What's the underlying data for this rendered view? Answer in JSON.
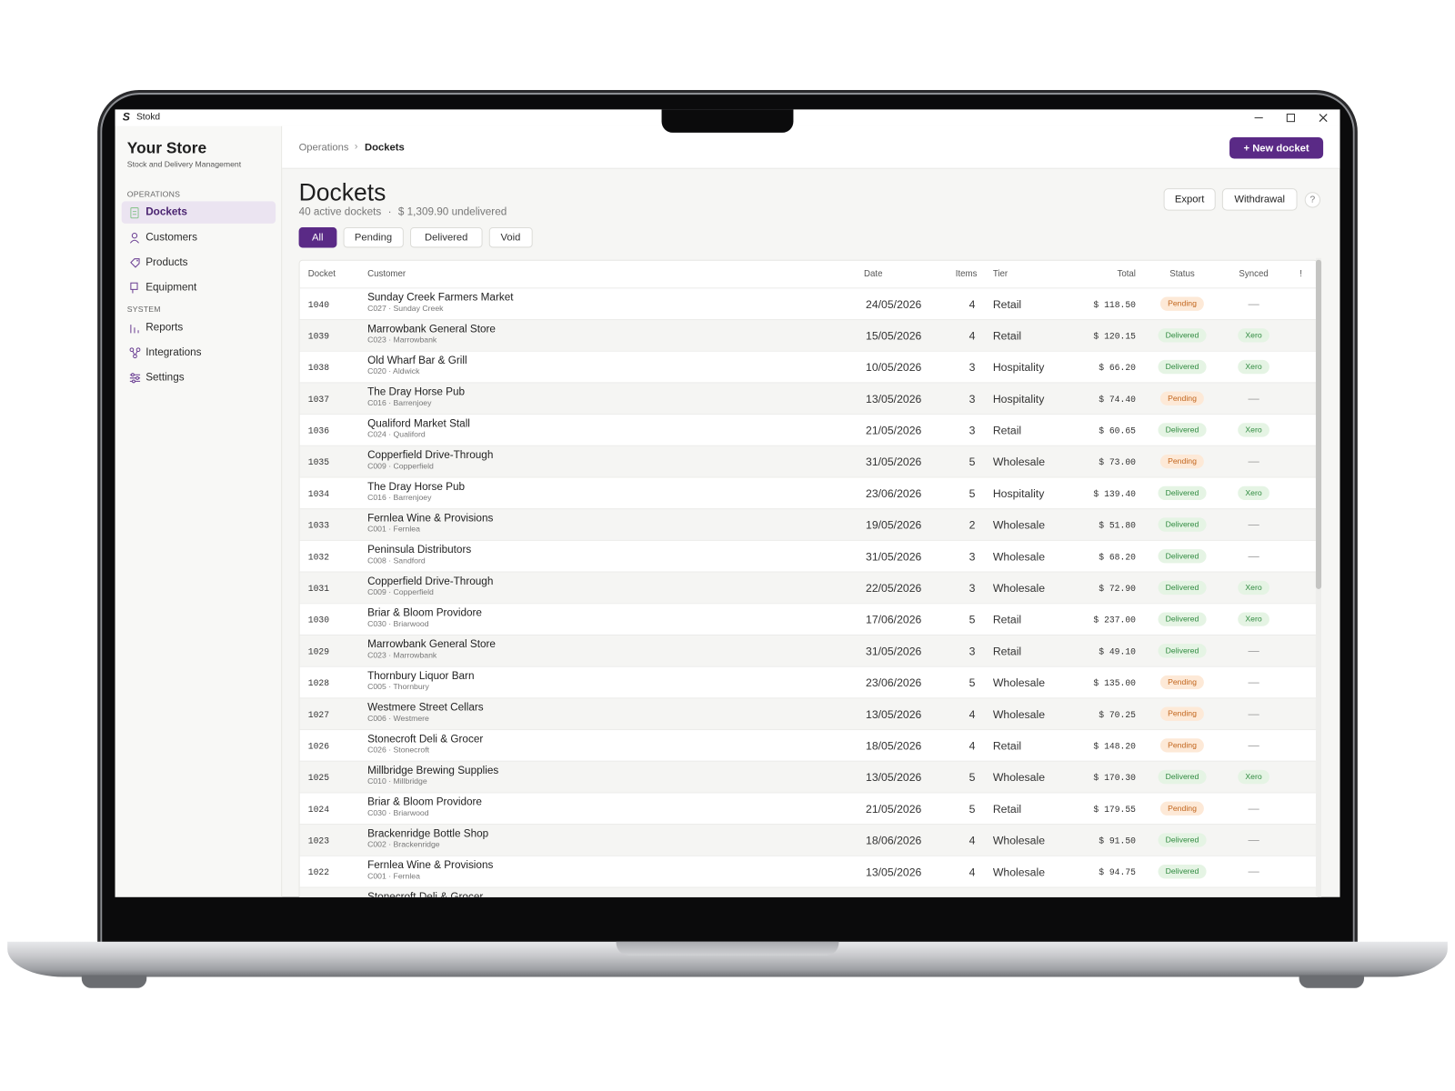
{
  "window": {
    "title": "Stokd"
  },
  "sidebar": {
    "brand": "Your Store",
    "tagline": "Stock and Delivery Management",
    "sections": [
      {
        "heading": "OPERATIONS",
        "items": [
          "Dockets",
          "Customers",
          "Products",
          "Equipment"
        ],
        "active": 0
      },
      {
        "heading": "SYSTEM",
        "items": [
          "Reports",
          "Integrations",
          "Settings"
        ]
      }
    ]
  },
  "breadcrumb": [
    "Operations",
    "Dockets"
  ],
  "primary_action": "+ New docket",
  "page": {
    "title": "Dockets",
    "summary": "40 active dockets",
    "separator": "·",
    "undelivered": "$ 1,309.90 undelivered",
    "actions": [
      "Export",
      "Withdrawal",
      "?"
    ]
  },
  "filters": {
    "items": [
      "All",
      "Pending",
      "Delivered",
      "Void"
    ],
    "active": 0
  },
  "badge_styles": [
    {
      "label": "Pending",
      "color": "#c2651c",
      "background": "#fde9d7"
    },
    {
      "label": "Delivered",
      "color": "#2f8a3f",
      "background": "#e5f4e4"
    },
    {
      "label": "Xero",
      "color": "#2f8a3f",
      "background": "#e5f4e4"
    }
  ],
  "table": {
    "columns": [
      "Docket",
      "Customer",
      "Date",
      "Items",
      "Tier",
      "Total",
      "Status",
      "Synced",
      "!"
    ],
    "rows": [
      {
        "docket": "1040",
        "customer": "Sunday Creek Farmers Market",
        "code": "C027 · Sunday Creek",
        "date": "24/05/2026",
        "items": "4",
        "tier": "Retail",
        "total": "$ 118.50",
        "status": "Pending",
        "synced": "—"
      },
      {
        "docket": "1039",
        "customer": "Marrowbank General Store",
        "code": "C023 · Marrowbank",
        "date": "15/05/2026",
        "items": "4",
        "tier": "Retail",
        "total": "$ 120.15",
        "status": "Delivered",
        "synced": "Xero"
      },
      {
        "docket": "1038",
        "customer": "Old Wharf Bar & Grill",
        "code": "C020 · Aldwick",
        "date": "10/05/2026",
        "items": "3",
        "tier": "Hospitality",
        "total": "$ 66.20",
        "status": "Delivered",
        "synced": "Xero"
      },
      {
        "docket": "1037",
        "customer": "The Dray Horse Pub",
        "code": "C016 · Barrenjoey",
        "date": "13/05/2026",
        "items": "3",
        "tier": "Hospitality",
        "total": "$ 74.40",
        "status": "Pending",
        "synced": "—"
      },
      {
        "docket": "1036",
        "customer": "Qualiford Market Stall",
        "code": "C024 · Qualiford",
        "date": "21/05/2026",
        "items": "3",
        "tier": "Retail",
        "total": "$ 60.65",
        "status": "Delivered",
        "synced": "Xero"
      },
      {
        "docket": "1035",
        "customer": "Copperfield Drive-Through",
        "code": "C009 · Copperfield",
        "date": "31/05/2026",
        "items": "5",
        "tier": "Wholesale",
        "total": "$ 73.00",
        "status": "Pending",
        "synced": "—"
      },
      {
        "docket": "1034",
        "customer": "The Dray Horse Pub",
        "code": "C016 · Barrenjoey",
        "date": "23/06/2026",
        "items": "5",
        "tier": "Hospitality",
        "total": "$ 139.40",
        "status": "Delivered",
        "synced": "Xero"
      },
      {
        "docket": "1033",
        "customer": "Fernlea Wine & Provisions",
        "code": "C001 · Fernlea",
        "date": "19/05/2026",
        "items": "2",
        "tier": "Wholesale",
        "total": "$ 51.80",
        "status": "Delivered",
        "synced": "—"
      },
      {
        "docket": "1032",
        "customer": "Peninsula Distributors",
        "code": "C008 · Sandford",
        "date": "31/05/2026",
        "items": "3",
        "tier": "Wholesale",
        "total": "$ 68.20",
        "status": "Delivered",
        "synced": "—"
      },
      {
        "docket": "1031",
        "customer": "Copperfield Drive-Through",
        "code": "C009 · Copperfield",
        "date": "22/05/2026",
        "items": "3",
        "tier": "Wholesale",
        "total": "$ 72.90",
        "status": "Delivered",
        "synced": "Xero"
      },
      {
        "docket": "1030",
        "customer": "Briar & Bloom Providore",
        "code": "C030 · Briarwood",
        "date": "17/06/2026",
        "items": "5",
        "tier": "Retail",
        "total": "$ 237.00",
        "status": "Delivered",
        "synced": "Xero"
      },
      {
        "docket": "1029",
        "customer": "Marrowbank General Store",
        "code": "C023 · Marrowbank",
        "date": "31/05/2026",
        "items": "3",
        "tier": "Retail",
        "total": "$ 49.10",
        "status": "Delivered",
        "synced": "—"
      },
      {
        "docket": "1028",
        "customer": "Thornbury Liquor Barn",
        "code": "C005 · Thornbury",
        "date": "23/06/2026",
        "items": "5",
        "tier": "Wholesale",
        "total": "$ 135.00",
        "status": "Pending",
        "synced": "—"
      },
      {
        "docket": "1027",
        "customer": "Westmere Street Cellars",
        "code": "C006 · Westmere",
        "date": "13/05/2026",
        "items": "4",
        "tier": "Wholesale",
        "total": "$ 70.25",
        "status": "Pending",
        "synced": "—"
      },
      {
        "docket": "1026",
        "customer": "Stonecroft Deli & Grocer",
        "code": "C026 · Stonecroft",
        "date": "18/05/2026",
        "items": "4",
        "tier": "Retail",
        "total": "$ 148.20",
        "status": "Pending",
        "synced": "—"
      },
      {
        "docket": "1025",
        "customer": "Millbridge Brewing Supplies",
        "code": "C010 · Millbridge",
        "date": "13/05/2026",
        "items": "5",
        "tier": "Wholesale",
        "total": "$ 170.30",
        "status": "Delivered",
        "synced": "Xero"
      },
      {
        "docket": "1024",
        "customer": "Briar & Bloom Providore",
        "code": "C030 · Briarwood",
        "date": "21/05/2026",
        "items": "5",
        "tier": "Retail",
        "total": "$ 179.55",
        "status": "Pending",
        "synced": "—"
      },
      {
        "docket": "1023",
        "customer": "Brackenridge Bottle Shop",
        "code": "C002 · Brackenridge",
        "date": "18/06/2026",
        "items": "4",
        "tier": "Wholesale",
        "total": "$ 91.50",
        "status": "Delivered",
        "synced": "—"
      },
      {
        "docket": "1022",
        "customer": "Fernlea Wine & Provisions",
        "code": "C001 · Fernlea",
        "date": "13/05/2026",
        "items": "4",
        "tier": "Wholesale",
        "total": "$ 94.75",
        "status": "Delivered",
        "synced": "—"
      },
      {
        "customer": "Stonecroft Deli & Grocer"
      }
    ]
  }
}
